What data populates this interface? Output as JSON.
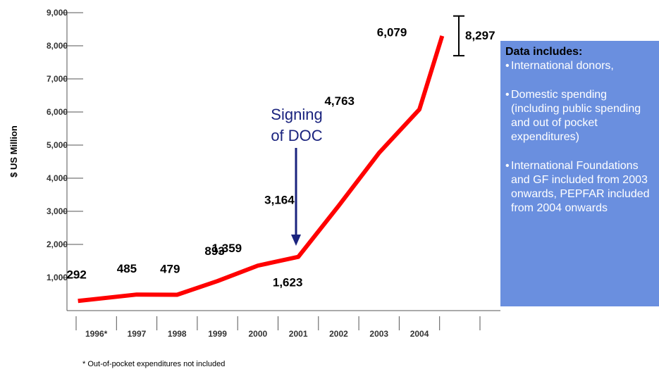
{
  "chart_data": {
    "type": "line",
    "ylabel": "$ US Million",
    "xlabel": "",
    "ylim": [
      0,
      9000
    ],
    "y_ticks": [
      "1,000",
      "2,000",
      "3,000",
      "4,000",
      "5,000",
      "6,000",
      "7,000",
      "8,000",
      "9,000"
    ],
    "y_tick_values": [
      1000,
      2000,
      3000,
      4000,
      5000,
      6000,
      7000,
      8000,
      9000
    ],
    "categories": [
      "1996*",
      "1997",
      "1998",
      "1999",
      "2000",
      "2001",
      "2002",
      "2003",
      "2004",
      ""
    ],
    "values": [
      292,
      485,
      479,
      893,
      1359,
      1623,
      3164,
      4763,
      6079,
      8297
    ],
    "data_labels": [
      "292",
      "485",
      "479",
      "893",
      "1,359",
      "1,623",
      "3,164",
      "4,763",
      "6,079",
      "8,297"
    ],
    "line_color": "#ff0000",
    "grid": false,
    "annotation": {
      "text_line1": "Signing",
      "text_line2": "of DOC",
      "at_category": "2001",
      "color": "#1a237e"
    },
    "error_bar": {
      "at_index": 9,
      "low": 7700,
      "high": 8900
    }
  },
  "info_box": {
    "title": "Data includes:",
    "items": [
      "International donors,",
      "Domestic spending (including public spending and out  of pocket expenditures)",
      "International Foundations and GF included from 2003 onwards, PEPFAR included from 2004  onwards"
    ],
    "background": "#6a8fdf"
  },
  "footnote": "* Out-of-pocket expenditures not included"
}
